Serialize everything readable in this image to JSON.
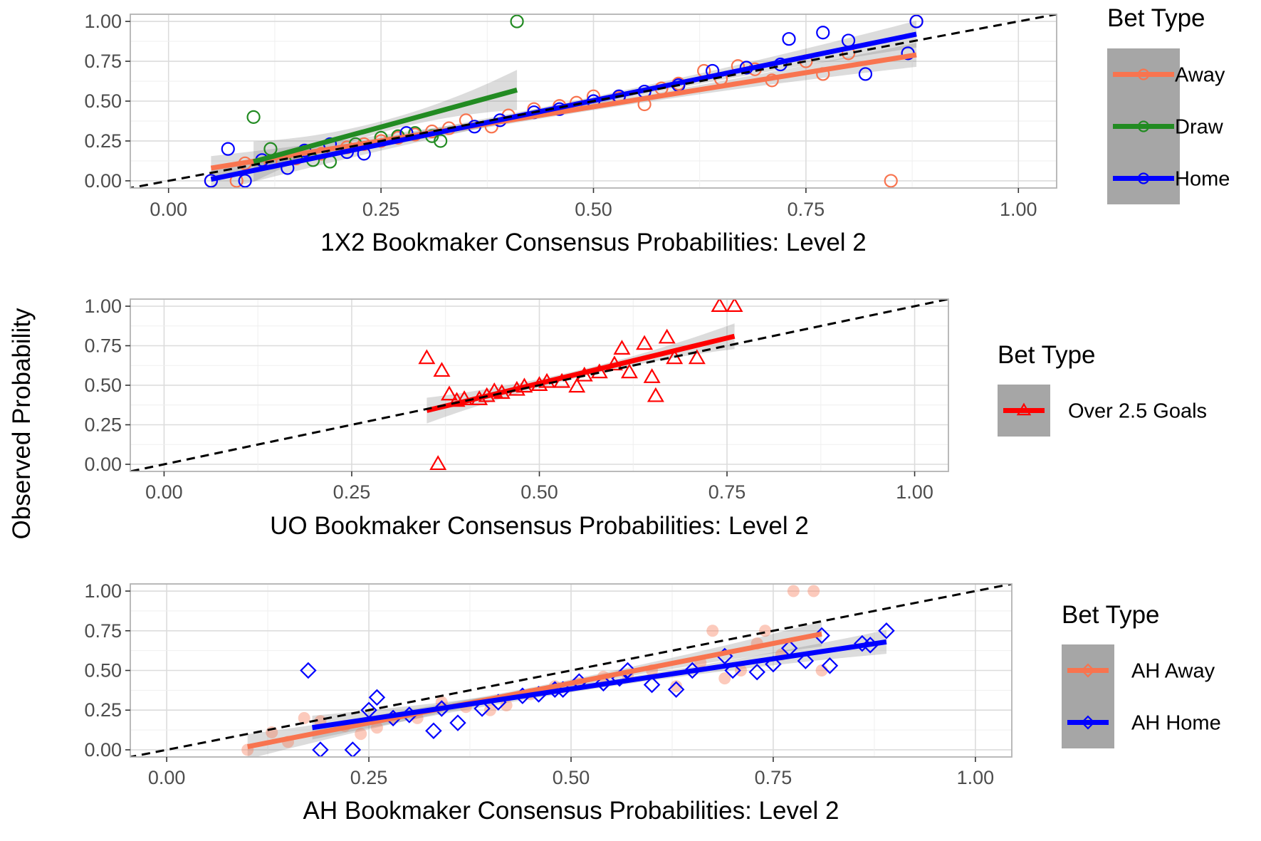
{
  "ylabel": "Observed Probability",
  "chart_data": [
    {
      "type": "scatter",
      "xlabel": "1X2 Bookmaker Consensus Probabilities: Level 2",
      "xlim": [
        0,
        1
      ],
      "ylim": [
        0,
        1
      ],
      "xticks": [
        "0.00",
        "0.25",
        "0.50",
        "0.75",
        "1.00"
      ],
      "yticks": [
        "0.00",
        "0.25",
        "0.50",
        "0.75",
        "1.00"
      ],
      "reference_line": "y = x",
      "legend_title": "Bet Type",
      "legend_position": "right",
      "series": [
        {
          "name": "Away",
          "color": "#f8744f",
          "marker": "circle",
          "fit": [
            [
              0.05,
              0.08
            ],
            [
              0.88,
              0.79
            ]
          ],
          "points": [
            [
              0.05,
              0.0
            ],
            [
              0.08,
              0.0
            ],
            [
              0.09,
              0.11
            ],
            [
              0.12,
              0.12
            ],
            [
              0.15,
              0.14
            ],
            [
              0.18,
              0.17
            ],
            [
              0.21,
              0.21
            ],
            [
              0.23,
              0.23
            ],
            [
              0.25,
              0.25
            ],
            [
              0.27,
              0.27
            ],
            [
              0.29,
              0.29
            ],
            [
              0.31,
              0.31
            ],
            [
              0.33,
              0.33
            ],
            [
              0.35,
              0.38
            ],
            [
              0.38,
              0.34
            ],
            [
              0.4,
              0.41
            ],
            [
              0.43,
              0.45
            ],
            [
              0.46,
              0.47
            ],
            [
              0.48,
              0.49
            ],
            [
              0.5,
              0.53
            ],
            [
              0.53,
              0.52
            ],
            [
              0.56,
              0.48
            ],
            [
              0.58,
              0.58
            ],
            [
              0.6,
              0.61
            ],
            [
              0.63,
              0.69
            ],
            [
              0.65,
              0.64
            ],
            [
              0.67,
              0.72
            ],
            [
              0.69,
              0.7
            ],
            [
              0.71,
              0.63
            ],
            [
              0.75,
              0.75
            ],
            [
              0.77,
              0.67
            ],
            [
              0.8,
              0.8
            ],
            [
              0.85,
              0.0
            ],
            [
              0.88,
              1.0
            ]
          ]
        },
        {
          "name": "Draw",
          "color": "#228b22",
          "marker": "circle",
          "fit": [
            [
              0.1,
              0.12
            ],
            [
              0.41,
              0.57
            ]
          ],
          "points": [
            [
              0.1,
              0.4
            ],
            [
              0.12,
              0.2
            ],
            [
              0.15,
              0.15
            ],
            [
              0.17,
              0.13
            ],
            [
              0.19,
              0.12
            ],
            [
              0.22,
              0.23
            ],
            [
              0.25,
              0.27
            ],
            [
              0.27,
              0.28
            ],
            [
              0.29,
              0.3
            ],
            [
              0.31,
              0.28
            ],
            [
              0.32,
              0.25
            ],
            [
              0.41,
              1.0
            ]
          ]
        },
        {
          "name": "Home",
          "color": "#0000ff",
          "marker": "circle",
          "fit": [
            [
              0.05,
              0.01
            ],
            [
              0.88,
              0.92
            ]
          ],
          "points": [
            [
              0.05,
              0.0
            ],
            [
              0.07,
              0.2
            ],
            [
              0.09,
              0.0
            ],
            [
              0.11,
              0.13
            ],
            [
              0.14,
              0.08
            ],
            [
              0.16,
              0.19
            ],
            [
              0.19,
              0.23
            ],
            [
              0.21,
              0.18
            ],
            [
              0.23,
              0.17
            ],
            [
              0.28,
              0.3
            ],
            [
              0.36,
              0.34
            ],
            [
              0.39,
              0.38
            ],
            [
              0.43,
              0.43
            ],
            [
              0.46,
              0.45
            ],
            [
              0.5,
              0.5
            ],
            [
              0.53,
              0.53
            ],
            [
              0.56,
              0.56
            ],
            [
              0.6,
              0.6
            ],
            [
              0.64,
              0.69
            ],
            [
              0.68,
              0.71
            ],
            [
              0.72,
              0.73
            ],
            [
              0.73,
              0.89
            ],
            [
              0.77,
              0.93
            ],
            [
              0.8,
              0.88
            ],
            [
              0.82,
              0.67
            ],
            [
              0.87,
              0.8
            ],
            [
              0.88,
              1.0
            ]
          ]
        }
      ]
    },
    {
      "type": "scatter",
      "xlabel": "UO Bookmaker Consensus Probabilities: Level 2",
      "xlim": [
        0,
        1
      ],
      "ylim": [
        0,
        1
      ],
      "xticks": [
        "0.00",
        "0.25",
        "0.50",
        "0.75",
        "1.00"
      ],
      "yticks": [
        "0.00",
        "0.25",
        "0.50",
        "0.75",
        "1.00"
      ],
      "reference_line": "y = x",
      "legend_title": "Bet Type",
      "legend_position": "right",
      "series": [
        {
          "name": "Over 2.5 Goals",
          "color": "#ff0000",
          "marker": "triangle",
          "fit": [
            [
              0.35,
              0.34
            ],
            [
              0.76,
              0.81
            ]
          ],
          "points": [
            [
              0.35,
              0.67
            ],
            [
              0.365,
              0.0
            ],
            [
              0.37,
              0.59
            ],
            [
              0.38,
              0.44
            ],
            [
              0.39,
              0.4
            ],
            [
              0.4,
              0.41
            ],
            [
              0.42,
              0.41
            ],
            [
              0.43,
              0.43
            ],
            [
              0.44,
              0.46
            ],
            [
              0.45,
              0.45
            ],
            [
              0.47,
              0.47
            ],
            [
              0.48,
              0.49
            ],
            [
              0.5,
              0.5
            ],
            [
              0.51,
              0.52
            ],
            [
              0.53,
              0.52
            ],
            [
              0.55,
              0.49
            ],
            [
              0.56,
              0.56
            ],
            [
              0.58,
              0.58
            ],
            [
              0.6,
              0.63
            ],
            [
              0.61,
              0.73
            ],
            [
              0.62,
              0.58
            ],
            [
              0.64,
              0.76
            ],
            [
              0.65,
              0.55
            ],
            [
              0.655,
              0.43
            ],
            [
              0.67,
              0.8
            ],
            [
              0.68,
              0.67
            ],
            [
              0.71,
              0.67
            ],
            [
              0.74,
              1.0
            ],
            [
              0.76,
              1.0
            ]
          ]
        }
      ]
    },
    {
      "type": "scatter",
      "xlabel": "AH Bookmaker Consensus Probabilities: Level 2",
      "xlim": [
        0,
        1
      ],
      "ylim": [
        0,
        1
      ],
      "xticks": [
        "0.00",
        "0.25",
        "0.50",
        "0.75",
        "1.00"
      ],
      "yticks": [
        "0.00",
        "0.25",
        "0.50",
        "0.75",
        "1.00"
      ],
      "reference_line": "y = x",
      "legend_title": "Bet Type",
      "legend_position": "right",
      "series": [
        {
          "name": "AH Away",
          "color": "#f8744f",
          "marker": "circle-filled",
          "fit": [
            [
              0.1,
              0.02
            ],
            [
              0.81,
              0.73
            ]
          ],
          "points": [
            [
              0.1,
              0.0
            ],
            [
              0.13,
              0.11
            ],
            [
              0.15,
              0.05
            ],
            [
              0.17,
              0.2
            ],
            [
              0.19,
              0.18
            ],
            [
              0.22,
              0.15
            ],
            [
              0.24,
              0.1
            ],
            [
              0.26,
              0.14
            ],
            [
              0.28,
              0.2
            ],
            [
              0.31,
              0.2
            ],
            [
              0.34,
              0.3
            ],
            [
              0.37,
              0.27
            ],
            [
              0.4,
              0.25
            ],
            [
              0.42,
              0.28
            ],
            [
              0.45,
              0.35
            ],
            [
              0.48,
              0.4
            ],
            [
              0.51,
              0.42
            ],
            [
              0.54,
              0.46
            ],
            [
              0.57,
              0.47
            ],
            [
              0.6,
              0.5
            ],
            [
              0.63,
              0.4
            ],
            [
              0.66,
              0.55
            ],
            [
              0.675,
              0.75
            ],
            [
              0.69,
              0.45
            ],
            [
              0.71,
              0.5
            ],
            [
              0.73,
              0.67
            ],
            [
              0.74,
              0.75
            ],
            [
              0.76,
              0.6
            ],
            [
              0.775,
              1.0
            ],
            [
              0.8,
              1.0
            ],
            [
              0.81,
              0.5
            ]
          ]
        },
        {
          "name": "AH Home",
          "color": "#0000ff",
          "marker": "diamond",
          "fit": [
            [
              0.18,
              0.14
            ],
            [
              0.89,
              0.68
            ]
          ],
          "points": [
            [
              0.175,
              0.5
            ],
            [
              0.19,
              0.0
            ],
            [
              0.23,
              0.0
            ],
            [
              0.25,
              0.25
            ],
            [
              0.26,
              0.33
            ],
            [
              0.28,
              0.2
            ],
            [
              0.3,
              0.22
            ],
            [
              0.33,
              0.12
            ],
            [
              0.34,
              0.26
            ],
            [
              0.36,
              0.17
            ],
            [
              0.39,
              0.26
            ],
            [
              0.41,
              0.3
            ],
            [
              0.44,
              0.34
            ],
            [
              0.46,
              0.35
            ],
            [
              0.48,
              0.38
            ],
            [
              0.49,
              0.38
            ],
            [
              0.51,
              0.43
            ],
            [
              0.54,
              0.42
            ],
            [
              0.56,
              0.45
            ],
            [
              0.57,
              0.5
            ],
            [
              0.6,
              0.41
            ],
            [
              0.63,
              0.38
            ],
            [
              0.65,
              0.5
            ],
            [
              0.69,
              0.59
            ],
            [
              0.7,
              0.5
            ],
            [
              0.73,
              0.49
            ],
            [
              0.75,
              0.54
            ],
            [
              0.77,
              0.64
            ],
            [
              0.79,
              0.56
            ],
            [
              0.81,
              0.72
            ],
            [
              0.82,
              0.53
            ],
            [
              0.86,
              0.67
            ],
            [
              0.87,
              0.66
            ],
            [
              0.89,
              0.75
            ]
          ]
        }
      ]
    }
  ]
}
